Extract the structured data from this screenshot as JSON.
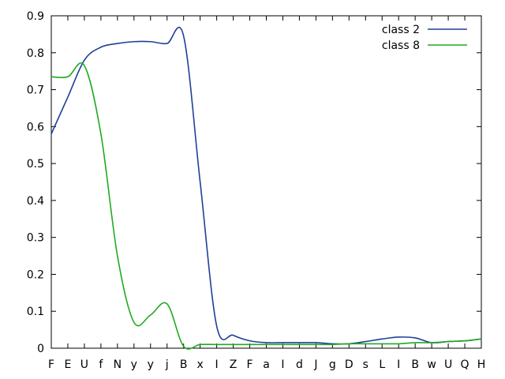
{
  "chart_data": {
    "type": "line",
    "title": "",
    "xlabel": "",
    "ylabel": "",
    "categories": [
      "F",
      "E",
      "U",
      "f",
      "N",
      "y",
      "y",
      "j",
      "B",
      "x",
      "I",
      "Z",
      "F",
      "a",
      "I",
      "d",
      "J",
      "g",
      "D",
      "s",
      "L",
      "I",
      "B",
      "w",
      "U",
      "Q",
      "H"
    ],
    "ylim": [
      0,
      0.9
    ],
    "yticks": [
      "0",
      "0.1",
      "0.2",
      "0.3",
      "0.4",
      "0.5",
      "0.6",
      "0.7",
      "0.8",
      "0.9"
    ],
    "grid": false,
    "legend_position": "top-right",
    "series": [
      {
        "name": "class 2",
        "color": "#1f3f99",
        "values": [
          0.58,
          0.68,
          0.78,
          0.815,
          0.825,
          0.83,
          0.83,
          0.825,
          0.845,
          0.45,
          0.06,
          0.035,
          0.02,
          0.015,
          0.015,
          0.015,
          0.015,
          0.012,
          0.012,
          0.018,
          0.025,
          0.03,
          0.028,
          0.015,
          0.018,
          0.02,
          0.025
        ]
      },
      {
        "name": "class 8",
        "color": "#22aa22",
        "values": [
          0.735,
          0.735,
          0.765,
          0.58,
          0.25,
          0.07,
          0.09,
          0.12,
          0.005,
          0.01,
          0.01,
          0.01,
          0.01,
          0.01,
          0.01,
          0.01,
          0.01,
          0.01,
          0.012,
          0.012,
          0.012,
          0.012,
          0.015,
          0.015,
          0.018,
          0.02,
          0.025
        ]
      }
    ]
  }
}
